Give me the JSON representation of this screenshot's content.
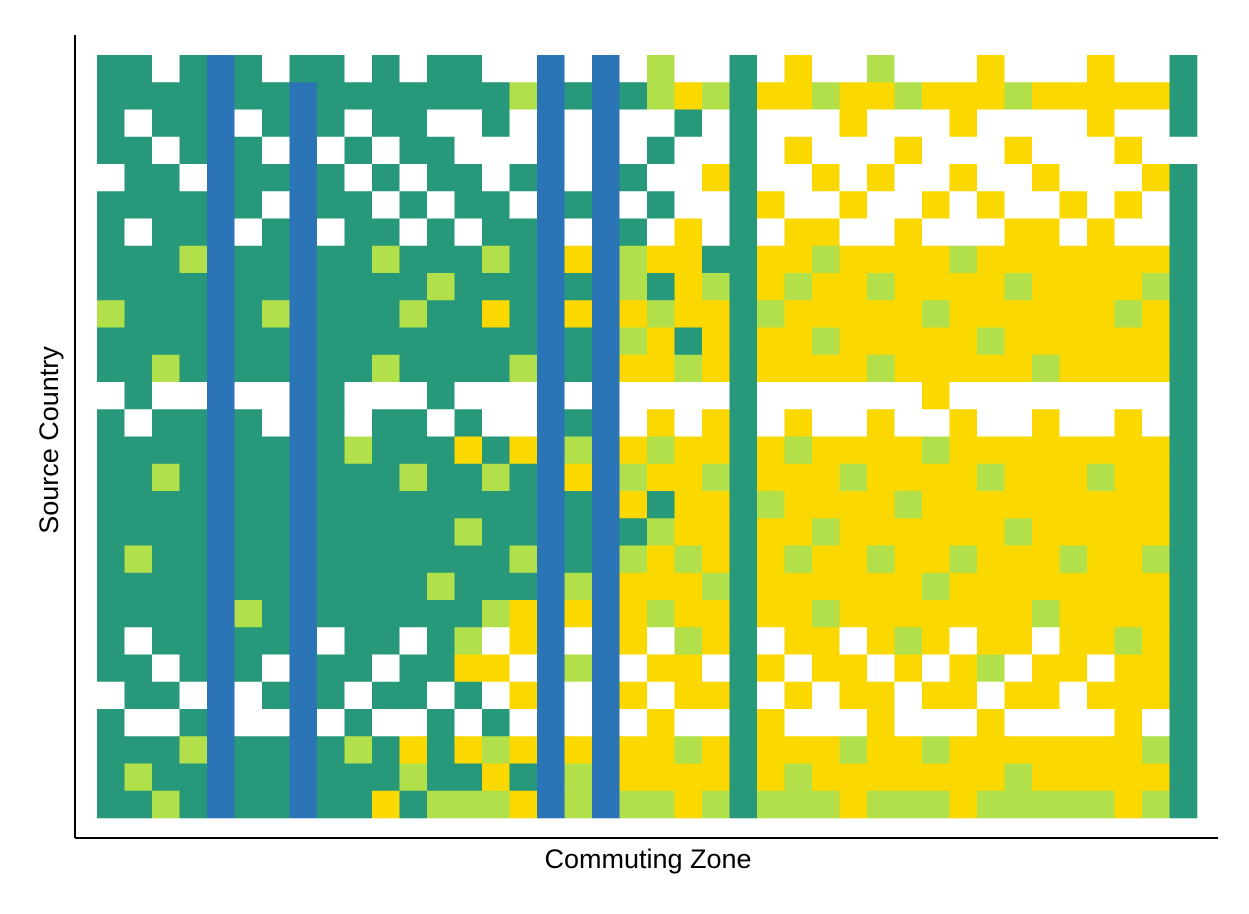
{
  "chart_data": {
    "type": "heatmap",
    "x_label": "Commuting Zone",
    "y_label": "Source Country",
    "colors": [
      "#ffffff",
      "#fad800",
      "#b2e04b",
      "#27987a",
      "#2b75b6"
    ],
    "matrix": [
      [
        3,
        3,
        0,
        3,
        4,
        3,
        0,
        3,
        3,
        0,
        3,
        0,
        3,
        3,
        0,
        0,
        4,
        0,
        4,
        0,
        2,
        0,
        0,
        3,
        0,
        1,
        0,
        0,
        2,
        0,
        0,
        0,
        1,
        0,
        0,
        0,
        1,
        0,
        0,
        3
      ],
      [
        3,
        3,
        3,
        3,
        4,
        3,
        3,
        4,
        3,
        3,
        3,
        3,
        3,
        3,
        3,
        2,
        4,
        3,
        4,
        3,
        2,
        1,
        2,
        3,
        1,
        1,
        2,
        1,
        1,
        2,
        1,
        1,
        1,
        2,
        1,
        1,
        1,
        1,
        1,
        3
      ],
      [
        3,
        0,
        3,
        3,
        4,
        0,
        3,
        4,
        3,
        0,
        3,
        3,
        0,
        0,
        3,
        0,
        4,
        0,
        4,
        0,
        0,
        3,
        0,
        3,
        0,
        0,
        0,
        1,
        0,
        0,
        0,
        1,
        0,
        0,
        0,
        0,
        1,
        0,
        0,
        3
      ],
      [
        3,
        3,
        0,
        3,
        4,
        3,
        0,
        4,
        0,
        3,
        0,
        3,
        3,
        0,
        0,
        0,
        4,
        0,
        4,
        0,
        3,
        0,
        0,
        3,
        0,
        1,
        0,
        0,
        0,
        1,
        0,
        0,
        0,
        1,
        0,
        0,
        0,
        1,
        0,
        0
      ],
      [
        0,
        3,
        3,
        0,
        4,
        3,
        3,
        4,
        3,
        0,
        3,
        0,
        3,
        3,
        0,
        3,
        4,
        0,
        4,
        3,
        0,
        0,
        1,
        3,
        0,
        0,
        1,
        0,
        1,
        0,
        0,
        1,
        0,
        0,
        1,
        0,
        0,
        0,
        1,
        3
      ],
      [
        3,
        3,
        3,
        3,
        4,
        3,
        0,
        4,
        3,
        3,
        0,
        3,
        0,
        3,
        3,
        0,
        4,
        3,
        4,
        0,
        3,
        0,
        0,
        3,
        1,
        0,
        0,
        1,
        0,
        0,
        1,
        0,
        1,
        0,
        0,
        1,
        0,
        1,
        0,
        3
      ],
      [
        3,
        0,
        3,
        3,
        4,
        0,
        3,
        4,
        0,
        3,
        3,
        0,
        3,
        0,
        3,
        3,
        4,
        0,
        4,
        3,
        0,
        1,
        0,
        3,
        0,
        1,
        1,
        0,
        0,
        1,
        0,
        0,
        0,
        1,
        1,
        0,
        1,
        0,
        0,
        3
      ],
      [
        3,
        3,
        3,
        2,
        4,
        3,
        3,
        4,
        3,
        3,
        2,
        3,
        3,
        3,
        2,
        3,
        4,
        1,
        4,
        2,
        1,
        1,
        3,
        3,
        1,
        1,
        2,
        1,
        1,
        1,
        1,
        2,
        1,
        1,
        1,
        1,
        1,
        1,
        1,
        3
      ],
      [
        3,
        3,
        3,
        3,
        4,
        3,
        3,
        4,
        3,
        3,
        3,
        3,
        2,
        3,
        3,
        3,
        4,
        3,
        4,
        2,
        3,
        1,
        2,
        3,
        1,
        2,
        1,
        1,
        2,
        1,
        1,
        1,
        1,
        2,
        1,
        1,
        1,
        1,
        2,
        3
      ],
      [
        2,
        3,
        3,
        3,
        4,
        3,
        2,
        4,
        3,
        3,
        3,
        2,
        3,
        3,
        1,
        3,
        4,
        1,
        4,
        1,
        2,
        1,
        1,
        3,
        2,
        1,
        1,
        1,
        1,
        1,
        2,
        1,
        1,
        1,
        1,
        1,
        1,
        2,
        1,
        3
      ],
      [
        3,
        3,
        3,
        3,
        4,
        3,
        3,
        4,
        3,
        3,
        3,
        3,
        3,
        3,
        3,
        3,
        4,
        3,
        4,
        2,
        1,
        3,
        1,
        3,
        1,
        1,
        2,
        1,
        1,
        1,
        1,
        1,
        2,
        1,
        1,
        1,
        1,
        1,
        1,
        3
      ],
      [
        3,
        3,
        2,
        3,
        4,
        3,
        3,
        4,
        3,
        3,
        2,
        3,
        3,
        3,
        3,
        2,
        4,
        3,
        4,
        1,
        1,
        2,
        1,
        3,
        1,
        1,
        1,
        1,
        2,
        1,
        1,
        1,
        1,
        1,
        2,
        1,
        1,
        1,
        1,
        3
      ],
      [
        0,
        3,
        0,
        0,
        4,
        0,
        0,
        4,
        3,
        0,
        0,
        0,
        3,
        0,
        0,
        0,
        4,
        0,
        4,
        0,
        0,
        0,
        0,
        3,
        0,
        0,
        0,
        0,
        0,
        0,
        1,
        0,
        0,
        0,
        0,
        0,
        0,
        0,
        0,
        3
      ],
      [
        3,
        0,
        3,
        3,
        4,
        3,
        0,
        4,
        3,
        0,
        3,
        3,
        0,
        3,
        0,
        0,
        4,
        3,
        4,
        0,
        1,
        0,
        1,
        3,
        0,
        1,
        0,
        0,
        1,
        0,
        0,
        1,
        0,
        0,
        1,
        0,
        0,
        1,
        0,
        3
      ],
      [
        3,
        3,
        3,
        3,
        4,
        3,
        3,
        4,
        3,
        2,
        3,
        3,
        3,
        1,
        3,
        1,
        4,
        2,
        4,
        1,
        2,
        1,
        1,
        3,
        1,
        2,
        1,
        1,
        1,
        1,
        2,
        1,
        1,
        1,
        1,
        1,
        1,
        1,
        1,
        3
      ],
      [
        3,
        3,
        2,
        3,
        4,
        3,
        3,
        4,
        3,
        3,
        3,
        2,
        3,
        3,
        2,
        3,
        4,
        1,
        4,
        2,
        1,
        1,
        2,
        3,
        1,
        1,
        1,
        2,
        1,
        1,
        1,
        1,
        2,
        1,
        1,
        1,
        2,
        1,
        1,
        3
      ],
      [
        3,
        3,
        3,
        3,
        4,
        3,
        3,
        4,
        3,
        3,
        3,
        3,
        3,
        3,
        3,
        3,
        4,
        3,
        4,
        1,
        3,
        1,
        1,
        3,
        2,
        1,
        1,
        1,
        1,
        2,
        1,
        1,
        1,
        1,
        1,
        1,
        1,
        1,
        1,
        3
      ],
      [
        3,
        3,
        3,
        3,
        4,
        3,
        3,
        4,
        3,
        3,
        3,
        3,
        3,
        2,
        3,
        3,
        4,
        3,
        4,
        3,
        2,
        1,
        1,
        3,
        1,
        1,
        2,
        1,
        1,
        1,
        1,
        1,
        1,
        2,
        1,
        1,
        1,
        1,
        1,
        3
      ],
      [
        3,
        2,
        3,
        3,
        4,
        3,
        3,
        4,
        3,
        3,
        3,
        3,
        3,
        3,
        3,
        2,
        4,
        3,
        4,
        2,
        1,
        2,
        1,
        3,
        1,
        2,
        1,
        1,
        2,
        1,
        1,
        2,
        1,
        1,
        1,
        2,
        1,
        1,
        2,
        3
      ],
      [
        3,
        3,
        3,
        3,
        4,
        3,
        3,
        4,
        3,
        3,
        3,
        3,
        2,
        3,
        3,
        3,
        4,
        2,
        4,
        1,
        1,
        1,
        2,
        3,
        1,
        1,
        1,
        1,
        1,
        1,
        2,
        1,
        1,
        1,
        1,
        1,
        1,
        1,
        1,
        3
      ],
      [
        3,
        3,
        3,
        3,
        4,
        2,
        3,
        4,
        3,
        3,
        3,
        3,
        3,
        3,
        2,
        1,
        4,
        1,
        4,
        1,
        2,
        1,
        1,
        3,
        1,
        1,
        2,
        1,
        1,
        1,
        1,
        1,
        1,
        1,
        2,
        1,
        1,
        1,
        1,
        3
      ],
      [
        3,
        0,
        3,
        3,
        4,
        3,
        3,
        4,
        0,
        3,
        3,
        0,
        3,
        2,
        0,
        1,
        4,
        0,
        4,
        1,
        0,
        2,
        1,
        3,
        0,
        1,
        1,
        0,
        1,
        2,
        1,
        0,
        1,
        1,
        0,
        1,
        1,
        2,
        1,
        3
      ],
      [
        3,
        3,
        0,
        3,
        4,
        3,
        0,
        4,
        3,
        3,
        0,
        3,
        3,
        1,
        1,
        0,
        4,
        2,
        4,
        0,
        1,
        1,
        0,
        3,
        1,
        0,
        1,
        1,
        0,
        1,
        0,
        1,
        2,
        0,
        1,
        1,
        0,
        1,
        1,
        3
      ],
      [
        0,
        3,
        3,
        0,
        4,
        0,
        3,
        4,
        3,
        0,
        3,
        3,
        0,
        3,
        0,
        1,
        4,
        0,
        4,
        1,
        0,
        1,
        1,
        3,
        0,
        1,
        0,
        1,
        1,
        0,
        1,
        1,
        0,
        1,
        1,
        0,
        1,
        1,
        1,
        3
      ],
      [
        3,
        0,
        0,
        3,
        4,
        0,
        0,
        4,
        0,
        3,
        0,
        0,
        3,
        0,
        3,
        0,
        4,
        0,
        4,
        0,
        1,
        0,
        0,
        3,
        1,
        0,
        0,
        0,
        1,
        0,
        0,
        0,
        1,
        0,
        0,
        0,
        0,
        1,
        0,
        3
      ],
      [
        3,
        3,
        3,
        2,
        4,
        3,
        3,
        4,
        3,
        2,
        3,
        1,
        3,
        1,
        2,
        1,
        4,
        1,
        4,
        1,
        1,
        2,
        1,
        3,
        1,
        1,
        1,
        2,
        1,
        1,
        2,
        1,
        1,
        1,
        1,
        1,
        1,
        1,
        2,
        3
      ],
      [
        3,
        2,
        3,
        3,
        4,
        3,
        3,
        4,
        3,
        3,
        3,
        2,
        3,
        3,
        1,
        3,
        4,
        2,
        4,
        1,
        1,
        1,
        1,
        3,
        1,
        2,
        1,
        1,
        1,
        1,
        1,
        1,
        1,
        2,
        1,
        1,
        1,
        1,
        1,
        3
      ],
      [
        3,
        3,
        2,
        3,
        4,
        3,
        3,
        4,
        3,
        3,
        1,
        3,
        2,
        2,
        2,
        1,
        4,
        2,
        4,
        2,
        2,
        1,
        2,
        3,
        2,
        2,
        2,
        1,
        2,
        2,
        2,
        1,
        2,
        2,
        2,
        2,
        2,
        1,
        2,
        3
      ]
    ]
  }
}
